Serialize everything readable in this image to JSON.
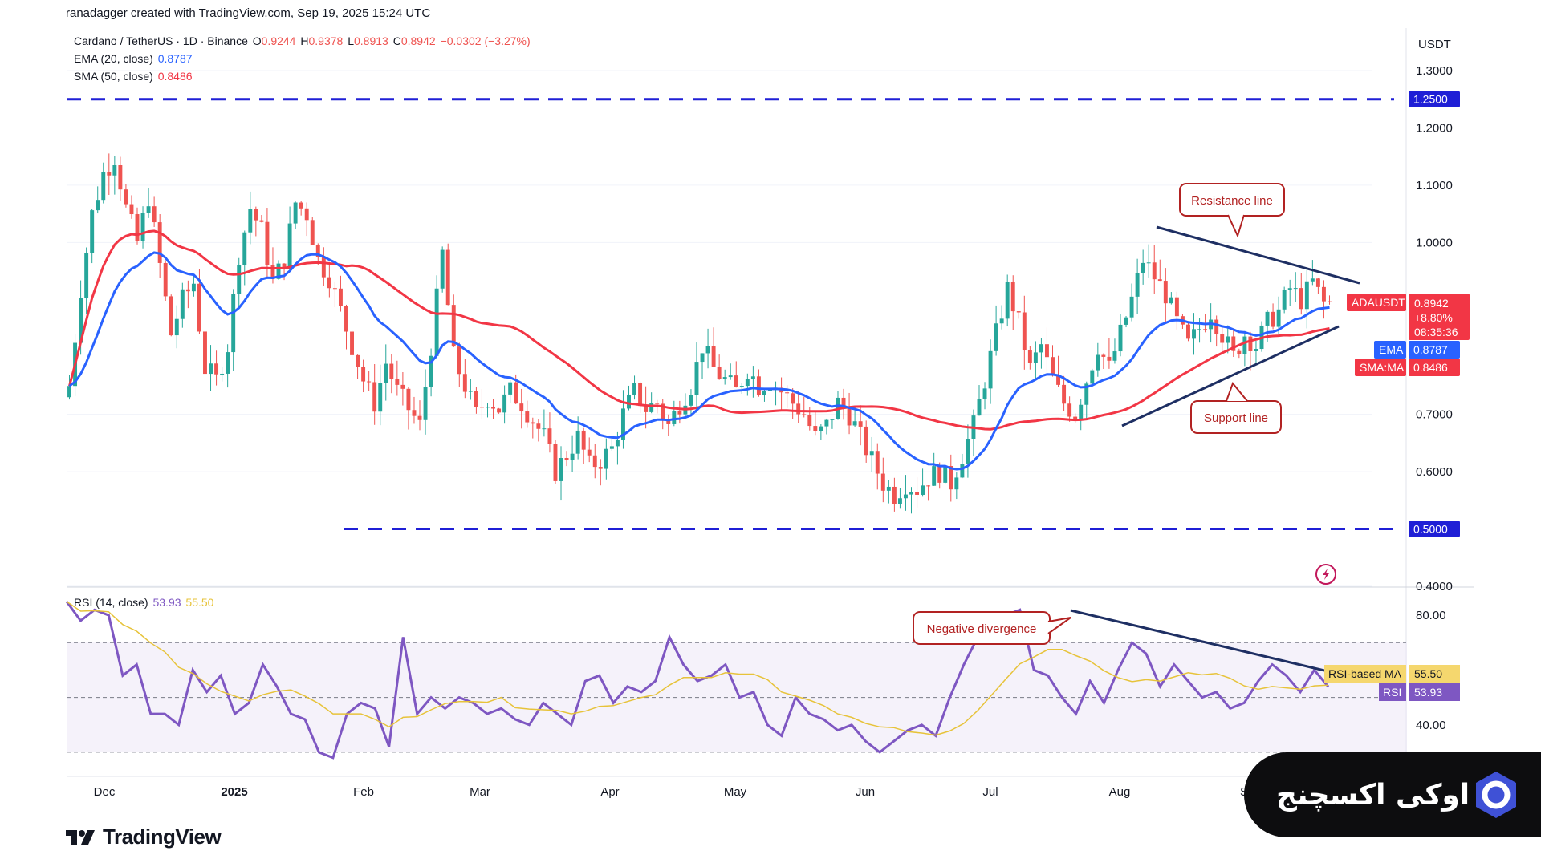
{
  "header": {
    "creator": "ranadagger created with TradingView.com, Sep 19, 2025 15:24 UTC",
    "symbol": "Cardano / TetherUS · 1D · Binance",
    "o_label": "O",
    "o_value": "0.9244",
    "h_label": "H",
    "h_value": "0.9378",
    "l_label": "L",
    "l_value": "0.8913",
    "c_label": "C",
    "c_value": "0.8942",
    "change": "−0.0302 (−3.27%)",
    "ema_label": "EMA (20, close)",
    "ema_value": "0.8787",
    "sma_label": "SMA (50, close)",
    "sma_value": "0.8486",
    "rsi_label": "RSI (14, close)",
    "rsi_value": "53.93",
    "rsi_ma_value": "55.50"
  },
  "colors": {
    "up": "#26a69a",
    "down": "#ef5350",
    "ema": "#2962ff",
    "sma": "#f23645",
    "rsi": "#7e57c2",
    "rsi_ma": "#e7c33a",
    "level": "#1f1fd6",
    "trend": "#1e2f63",
    "annotation": "#b22222"
  },
  "chart_data": [
    {
      "type": "candlestick",
      "symbol": "ADAUSDT",
      "currency": "USDT",
      "ylim": [
        0.4,
        1.3
      ],
      "y_ticks": [
        "1.3000",
        "1.2000",
        "1.1000",
        "1.0000",
        "0.7000",
        "0.6000",
        "0.4000"
      ],
      "x_ticks": [
        "Dec",
        "2025",
        "Feb",
        "Mar",
        "Apr",
        "May",
        "Jun",
        "Jul",
        "Aug",
        "S"
      ],
      "close_series": [
        0.75,
        0.92,
        1.05,
        1.12,
        1.15,
        1.06,
        1.0,
        1.08,
        0.96,
        0.84,
        0.9,
        0.93,
        0.78,
        0.76,
        0.82,
        0.98,
        1.06,
        1.02,
        0.93,
        0.97,
        1.07,
        1.05,
        0.97,
        0.94,
        0.88,
        0.82,
        0.76,
        0.72,
        0.79,
        0.74,
        0.71,
        0.68,
        0.82,
        0.98,
        0.8,
        0.75,
        0.7,
        0.73,
        0.71,
        0.74,
        0.72,
        0.69,
        0.66,
        0.6,
        0.63,
        0.66,
        0.61,
        0.62,
        0.64,
        0.7,
        0.74,
        0.71,
        0.72,
        0.68,
        0.72,
        0.75,
        0.82,
        0.78,
        0.76,
        0.74,
        0.78,
        0.75,
        0.76,
        0.74,
        0.72,
        0.7,
        0.66,
        0.68,
        0.72,
        0.7,
        0.66,
        0.62,
        0.58,
        0.56,
        0.58,
        0.57,
        0.59,
        0.6,
        0.58,
        0.63,
        0.68,
        0.76,
        0.84,
        0.92,
        0.86,
        0.78,
        0.82,
        0.76,
        0.72,
        0.7,
        0.76,
        0.82,
        0.78,
        0.84,
        0.9,
        0.97,
        0.94,
        0.91,
        0.86,
        0.82,
        0.85,
        0.88,
        0.84,
        0.8,
        0.84,
        0.82,
        0.86,
        0.88,
        0.92,
        0.9,
        0.93,
        0.8942
      ],
      "ema": {
        "name": "EMA",
        "value": "0.8787"
      },
      "sma": {
        "name": "SMA:MA",
        "value": "0.8486"
      },
      "price_label": {
        "name": "ADAUSDT",
        "value": "0.8942",
        "change": "+8.80%",
        "countdown": "08:35:36"
      },
      "levels": [
        {
          "value": 1.25,
          "label": "1.2500"
        },
        {
          "value": 0.5,
          "label": "0.5000"
        }
      ],
      "annotations": [
        "Resistance line",
        "Support line"
      ]
    },
    {
      "type": "line",
      "name": "RSI",
      "ylim": [
        25,
        85
      ],
      "y_ticks": [
        "80.00",
        "40.00"
      ],
      "bands": [
        70,
        50,
        30
      ],
      "rsi": [
        85,
        78,
        82,
        80,
        58,
        62,
        44,
        44,
        40,
        60,
        52,
        58,
        44,
        48,
        62,
        54,
        44,
        42,
        30,
        28,
        44,
        48,
        46,
        32,
        72,
        44,
        50,
        46,
        50,
        48,
        44,
        46,
        42,
        40,
        48,
        44,
        40,
        56,
        58,
        48,
        54,
        52,
        56,
        72,
        62,
        56,
        58,
        62,
        50,
        52,
        40,
        36,
        50,
        44,
        42,
        38,
        40,
        34,
        30,
        34,
        38,
        40,
        36,
        50,
        62,
        72,
        76,
        80,
        82,
        60,
        58,
        50,
        44,
        56,
        48,
        60,
        70,
        66,
        54,
        62,
        56,
        50,
        52,
        46,
        48,
        56,
        62,
        58,
        52,
        60,
        53.93
      ],
      "rsi_ma_label": "RSI-based MA",
      "rsi_ma_value": "55.50",
      "rsi_label": "RSI",
      "rsi_value": "53.93",
      "annotation": "Negative divergence"
    }
  ],
  "footer": {
    "brand": "TradingView",
    "badge_text": "اوکی اکسچنج"
  }
}
